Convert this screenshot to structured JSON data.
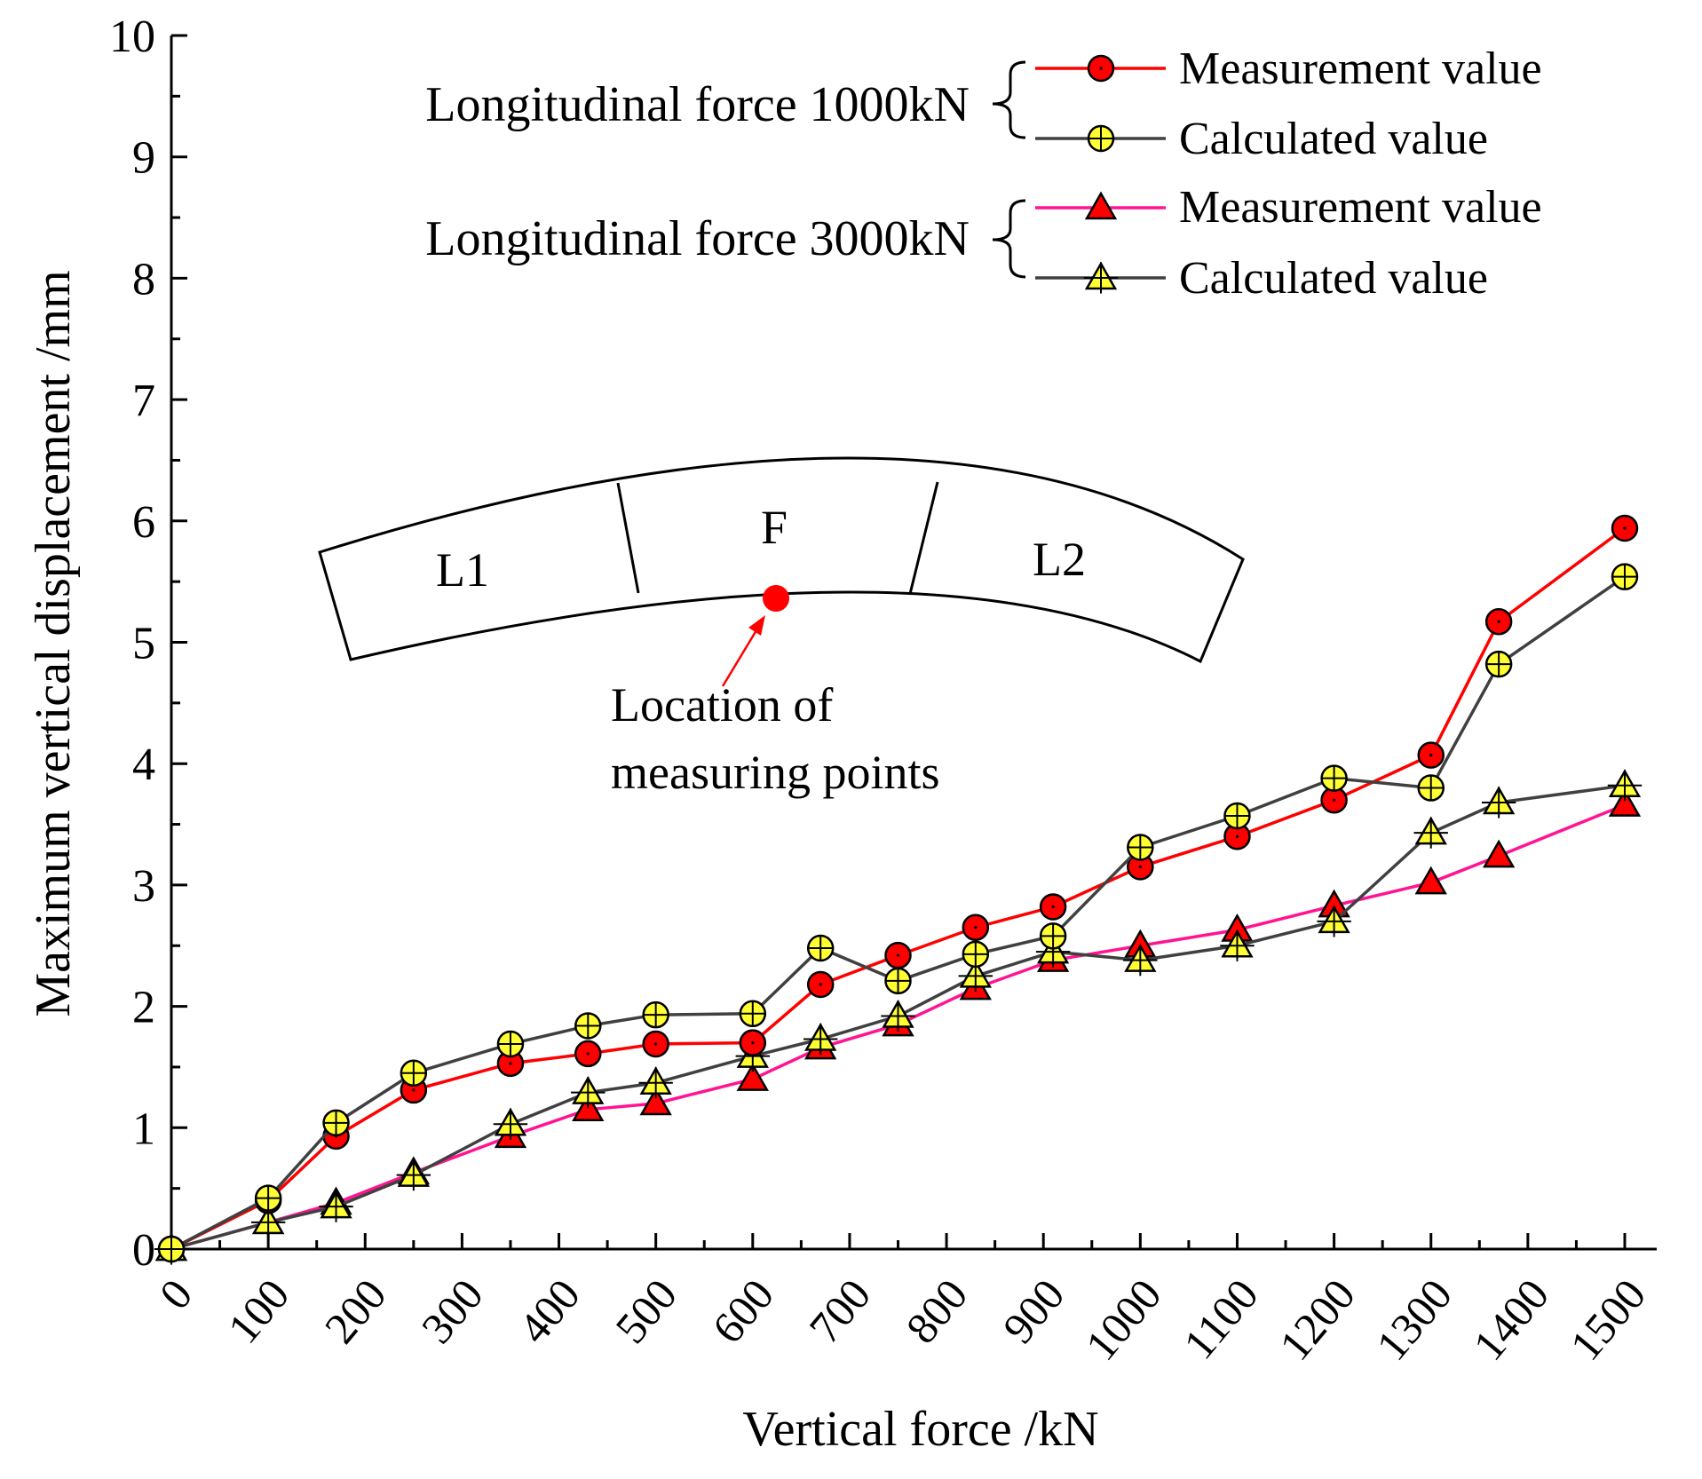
{
  "chart_data": {
    "type": "line",
    "xlabel": "Vertical force /kN",
    "ylabel": "Maximum vertical displacement /mm",
    "xlim": [
      0,
      1500
    ],
    "ylim": [
      0,
      10
    ],
    "x_ticks": [
      "0",
      "100",
      "200",
      "300",
      "400",
      "500",
      "600",
      "700",
      "800",
      "900",
      "1000",
      "1100",
      "1200",
      "1300",
      "1400",
      "1500"
    ],
    "y_ticks": [
      "0",
      "1",
      "2",
      "3",
      "4",
      "5",
      "6",
      "7",
      "8",
      "9",
      "10"
    ],
    "grid": false,
    "legend_groups": [
      {
        "label": "Longitudinal force 1000kN"
      },
      {
        "label": "Longitudinal force 3000kN"
      }
    ],
    "series": [
      {
        "name": "Measurement value",
        "group": "Longitudinal force 1000kN",
        "color": "#ff0000",
        "marker": "circle",
        "marker_fill": "#ff0000",
        "x": [
          0,
          100,
          170,
          250,
          350,
          430,
          500,
          600,
          670,
          750,
          830,
          910,
          1000,
          1100,
          1200,
          1300,
          1370,
          1500
        ],
        "y": [
          0,
          0.4,
          0.93,
          1.31,
          1.53,
          1.61,
          1.69,
          1.7,
          2.18,
          2.42,
          2.65,
          2.82,
          3.15,
          3.4,
          3.7,
          4.07,
          5.17,
          5.94
        ]
      },
      {
        "name": "Calculated value",
        "group": "Longitudinal force 1000kN",
        "color": "#404040",
        "marker": "circle-plus",
        "marker_fill": "#ffff33",
        "x": [
          0,
          100,
          170,
          250,
          350,
          430,
          500,
          600,
          670,
          750,
          830,
          910,
          1000,
          1100,
          1200,
          1300,
          1370,
          1500
        ],
        "y": [
          0,
          0.42,
          1.04,
          1.45,
          1.69,
          1.84,
          1.93,
          1.94,
          2.48,
          2.21,
          2.43,
          2.58,
          3.31,
          3.57,
          3.88,
          3.8,
          4.82,
          5.54
        ]
      },
      {
        "name": "Measurement value",
        "group": "Longitudinal force 3000kN",
        "color": "#ff1493",
        "marker": "triangle",
        "marker_fill": "#ff0000",
        "x": [
          0,
          100,
          170,
          250,
          350,
          430,
          500,
          600,
          670,
          750,
          830,
          910,
          1000,
          1100,
          1200,
          1300,
          1370,
          1500
        ],
        "y": [
          0,
          0.22,
          0.38,
          0.63,
          0.93,
          1.15,
          1.2,
          1.4,
          1.66,
          1.85,
          2.15,
          2.38,
          2.5,
          2.63,
          2.83,
          3.02,
          3.24,
          3.66
        ]
      },
      {
        "name": "Calculated value",
        "group": "Longitudinal force 3000kN",
        "color": "#404040",
        "marker": "triangle-plus",
        "marker_fill": "#ffff33",
        "x": [
          0,
          100,
          170,
          250,
          350,
          430,
          500,
          600,
          670,
          750,
          830,
          910,
          1000,
          1100,
          1200,
          1300,
          1370,
          1500
        ],
        "y": [
          0,
          0.22,
          0.35,
          0.61,
          1.03,
          1.29,
          1.37,
          1.59,
          1.73,
          1.92,
          2.25,
          2.45,
          2.38,
          2.5,
          2.7,
          3.43,
          3.68,
          3.82
        ]
      }
    ],
    "inset": {
      "segment_labels": [
        "L1",
        "F",
        "L2"
      ],
      "measuring_point_label_line1": "Location of",
      "measuring_point_label_line2": "measuring points",
      "point_color": "#ff0000"
    }
  }
}
